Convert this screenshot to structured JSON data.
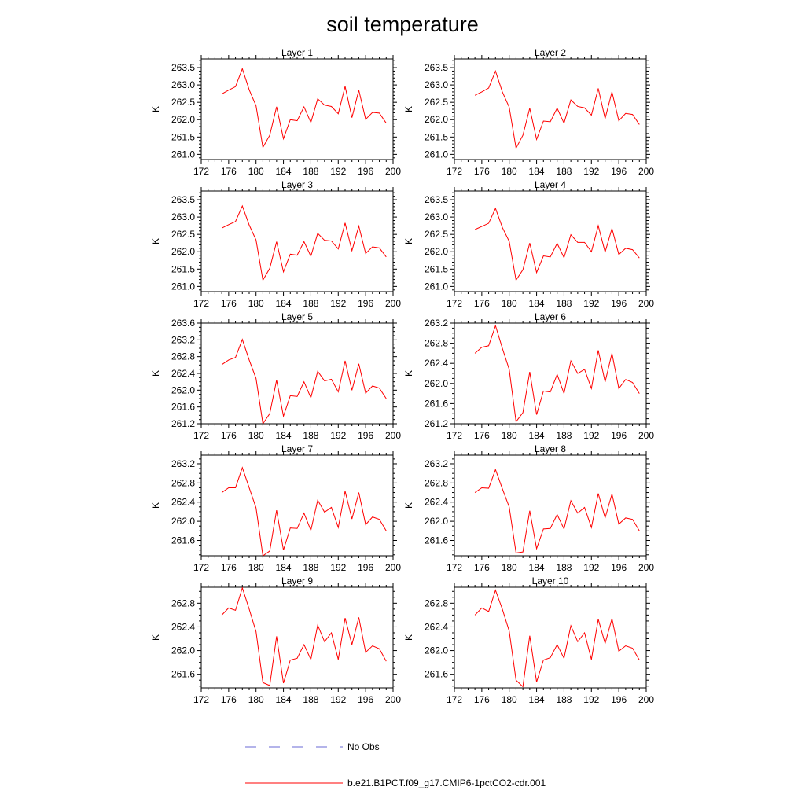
{
  "title": "soil temperature",
  "ylabel": "K",
  "line_color": "#ff0000",
  "obs_color": "#6a6ad6",
  "legend": {
    "obs_label": "No Obs",
    "model_label": "b.e21.B1PCT.f09_g17.CMIP6-1pctCO2-cdr.001"
  },
  "chart_data": [
    {
      "type": "line",
      "title": "Layer 1",
      "ylabel": "K",
      "xlim": [
        172,
        200
      ],
      "xticks": [
        172,
        176,
        180,
        184,
        188,
        192,
        196,
        200
      ],
      "ylim": [
        260.85,
        263.75
      ],
      "yticks": [
        261.0,
        261.5,
        262.0,
        262.5,
        263.0,
        263.5
      ],
      "x": [
        175,
        176,
        177,
        178,
        179,
        180,
        181,
        182,
        183,
        184,
        185,
        186,
        187,
        188,
        189,
        190,
        191,
        192,
        193,
        194,
        195,
        196,
        197,
        198,
        199
      ],
      "series": [
        {
          "values": [
            262.74,
            262.85,
            262.95,
            263.47,
            262.86,
            262.4,
            261.2,
            261.55,
            262.37,
            261.45,
            262.0,
            261.97,
            262.37,
            261.92,
            262.6,
            262.42,
            262.38,
            262.17,
            262.96,
            262.06,
            262.85,
            262.01,
            262.21,
            262.19,
            261.9
          ]
        }
      ]
    },
    {
      "type": "line",
      "title": "Layer 2",
      "ylabel": "K",
      "xlim": [
        172,
        200
      ],
      "xticks": [
        172,
        176,
        180,
        184,
        188,
        192,
        196,
        200
      ],
      "ylim": [
        260.85,
        263.75
      ],
      "yticks": [
        261.0,
        261.5,
        262.0,
        262.5,
        263.0,
        263.5
      ],
      "x": [
        175,
        176,
        177,
        178,
        179,
        180,
        181,
        182,
        183,
        184,
        185,
        186,
        187,
        188,
        189,
        190,
        191,
        192,
        193,
        194,
        195,
        196,
        197,
        198,
        199
      ],
      "series": [
        {
          "values": [
            262.7,
            262.8,
            262.91,
            263.4,
            262.8,
            262.36,
            261.18,
            261.55,
            262.33,
            261.43,
            261.96,
            261.94,
            262.33,
            261.9,
            262.57,
            262.38,
            262.34,
            262.13,
            262.9,
            262.03,
            262.8,
            261.97,
            262.18,
            262.15,
            261.86
          ]
        }
      ]
    },
    {
      "type": "line",
      "title": "Layer 3",
      "ylabel": "K",
      "xlim": [
        172,
        200
      ],
      "xticks": [
        172,
        176,
        180,
        184,
        188,
        192,
        196,
        200
      ],
      "ylim": [
        260.85,
        263.75
      ],
      "yticks": [
        261.0,
        261.5,
        262.0,
        262.5,
        263.0,
        263.5
      ],
      "x": [
        175,
        176,
        177,
        178,
        179,
        180,
        181,
        182,
        183,
        184,
        185,
        186,
        187,
        188,
        189,
        190,
        191,
        192,
        193,
        194,
        195,
        196,
        197,
        198,
        199
      ],
      "series": [
        {
          "values": [
            262.68,
            262.78,
            262.87,
            263.32,
            262.77,
            262.34,
            261.18,
            261.52,
            262.29,
            261.42,
            261.93,
            261.9,
            262.29,
            261.87,
            262.53,
            262.33,
            262.31,
            262.08,
            262.83,
            262.03,
            262.74,
            261.95,
            262.14,
            262.11,
            261.85
          ]
        }
      ]
    },
    {
      "type": "line",
      "title": "Layer 4",
      "ylabel": "K",
      "xlim": [
        172,
        200
      ],
      "xticks": [
        172,
        176,
        180,
        184,
        188,
        192,
        196,
        200
      ],
      "ylim": [
        260.85,
        263.75
      ],
      "yticks": [
        261.0,
        261.5,
        262.0,
        262.5,
        263.0,
        263.5
      ],
      "x": [
        175,
        176,
        177,
        178,
        179,
        180,
        181,
        182,
        183,
        184,
        185,
        186,
        187,
        188,
        189,
        190,
        191,
        192,
        193,
        194,
        195,
        196,
        197,
        198,
        199
      ],
      "series": [
        {
          "values": [
            262.64,
            262.73,
            262.82,
            263.25,
            262.7,
            262.3,
            261.18,
            261.48,
            262.25,
            261.4,
            261.88,
            261.85,
            262.24,
            261.83,
            262.49,
            262.27,
            262.27,
            262.0,
            262.75,
            261.99,
            262.67,
            261.92,
            262.1,
            262.06,
            261.82
          ]
        }
      ]
    },
    {
      "type": "line",
      "title": "Layer 5",
      "ylabel": "K",
      "xlim": [
        172,
        200
      ],
      "xticks": [
        172,
        176,
        180,
        184,
        188,
        192,
        196,
        200
      ],
      "ylim": [
        261.2,
        263.6
      ],
      "yticks": [
        261.2,
        261.6,
        262.0,
        262.4,
        262.8,
        263.2,
        263.6
      ],
      "x": [
        175,
        176,
        177,
        178,
        179,
        180,
        181,
        182,
        183,
        184,
        185,
        186,
        187,
        188,
        189,
        190,
        191,
        192,
        193,
        194,
        195,
        196,
        197,
        198,
        199
      ],
      "series": [
        {
          "values": [
            262.61,
            262.72,
            262.78,
            263.21,
            262.72,
            262.28,
            261.2,
            261.44,
            262.24,
            261.38,
            261.87,
            261.85,
            262.2,
            261.82,
            262.45,
            262.22,
            262.26,
            261.96,
            262.7,
            262.0,
            262.63,
            261.93,
            262.1,
            262.05,
            261.8
          ]
        }
      ]
    },
    {
      "type": "line",
      "title": "Layer 6",
      "ylabel": "K",
      "xlim": [
        172,
        200
      ],
      "xticks": [
        172,
        176,
        180,
        184,
        188,
        192,
        196,
        200
      ],
      "ylim": [
        261.2,
        263.2
      ],
      "yticks": [
        261.2,
        261.6,
        262.0,
        262.4,
        262.8,
        263.2
      ],
      "x": [
        175,
        176,
        177,
        178,
        179,
        180,
        181,
        182,
        183,
        184,
        185,
        186,
        187,
        188,
        189,
        190,
        191,
        192,
        193,
        194,
        195,
        196,
        197,
        198,
        199
      ],
      "series": [
        {
          "values": [
            262.6,
            262.72,
            262.75,
            263.15,
            262.7,
            262.28,
            261.24,
            261.42,
            262.23,
            261.38,
            261.85,
            261.83,
            262.18,
            261.8,
            262.45,
            262.2,
            262.28,
            261.9,
            262.66,
            262.03,
            262.6,
            261.9,
            262.08,
            262.02,
            261.8
          ]
        }
      ]
    },
    {
      "type": "line",
      "title": "Layer 7",
      "ylabel": "K",
      "xlim": [
        172,
        200
      ],
      "xticks": [
        172,
        176,
        180,
        184,
        188,
        192,
        196,
        200
      ],
      "ylim": [
        261.28,
        263.38
      ],
      "yticks": [
        261.6,
        262.0,
        262.4,
        262.8,
        263.2
      ],
      "x": [
        175,
        176,
        177,
        178,
        179,
        180,
        181,
        182,
        183,
        184,
        185,
        186,
        187,
        188,
        189,
        190,
        191,
        192,
        193,
        194,
        195,
        196,
        197,
        198,
        199
      ],
      "series": [
        {
          "values": [
            262.6,
            262.7,
            262.7,
            263.12,
            262.7,
            262.28,
            261.28,
            261.38,
            262.23,
            261.4,
            261.86,
            261.85,
            262.17,
            261.81,
            262.44,
            262.19,
            262.29,
            261.87,
            262.63,
            262.05,
            262.6,
            261.93,
            262.09,
            262.04,
            261.8
          ]
        }
      ]
    },
    {
      "type": "line",
      "title": "Layer 8",
      "ylabel": "K",
      "xlim": [
        172,
        200
      ],
      "xticks": [
        172,
        176,
        180,
        184,
        188,
        192,
        196,
        200
      ],
      "ylim": [
        261.28,
        263.38
      ],
      "yticks": [
        261.6,
        262.0,
        262.4,
        262.8,
        263.2
      ],
      "x": [
        175,
        176,
        177,
        178,
        179,
        180,
        181,
        182,
        183,
        184,
        185,
        186,
        187,
        188,
        189,
        190,
        191,
        192,
        193,
        194,
        195,
        196,
        197,
        198,
        199
      ],
      "series": [
        {
          "values": [
            262.6,
            262.7,
            262.69,
            263.08,
            262.68,
            262.3,
            261.34,
            261.36,
            262.22,
            261.43,
            261.84,
            261.85,
            262.14,
            261.84,
            262.43,
            262.17,
            262.29,
            261.87,
            262.58,
            262.07,
            262.57,
            261.94,
            262.07,
            262.04,
            261.8
          ]
        }
      ]
    },
    {
      "type": "line",
      "title": "Layer 9",
      "ylabel": "K",
      "xlim": [
        172,
        200
      ],
      "xticks": [
        172,
        176,
        180,
        184,
        188,
        192,
        196,
        200
      ],
      "ylim": [
        261.37,
        263.07
      ],
      "yticks": [
        261.6,
        262.0,
        262.4,
        262.8
      ],
      "x": [
        175,
        176,
        177,
        178,
        179,
        180,
        181,
        182,
        183,
        184,
        185,
        186,
        187,
        188,
        189,
        190,
        191,
        192,
        193,
        194,
        195,
        196,
        197,
        198,
        199
      ],
      "series": [
        {
          "values": [
            262.6,
            262.72,
            262.68,
            263.06,
            262.7,
            262.32,
            261.46,
            261.41,
            262.24,
            261.45,
            261.84,
            261.87,
            262.1,
            261.85,
            262.43,
            262.15,
            262.3,
            261.85,
            262.55,
            262.1,
            262.56,
            261.97,
            262.08,
            262.03,
            261.82
          ]
        }
      ]
    },
    {
      "type": "line",
      "title": "Layer 10",
      "ylabel": "K",
      "xlim": [
        172,
        200
      ],
      "xticks": [
        172,
        176,
        180,
        184,
        188,
        192,
        196,
        200
      ],
      "ylim": [
        261.37,
        263.07
      ],
      "yticks": [
        261.6,
        262.0,
        262.4,
        262.8
      ],
      "x": [
        175,
        176,
        177,
        178,
        179,
        180,
        181,
        182,
        183,
        184,
        185,
        186,
        187,
        188,
        189,
        190,
        191,
        192,
        193,
        194,
        195,
        196,
        197,
        198,
        199
      ],
      "series": [
        {
          "values": [
            262.6,
            262.72,
            262.66,
            263.02,
            262.7,
            262.33,
            261.5,
            261.39,
            262.25,
            261.47,
            261.84,
            261.88,
            262.1,
            261.87,
            262.42,
            262.15,
            262.3,
            261.85,
            262.53,
            262.12,
            262.54,
            261.99,
            262.08,
            262.04,
            261.84
          ]
        }
      ]
    }
  ]
}
